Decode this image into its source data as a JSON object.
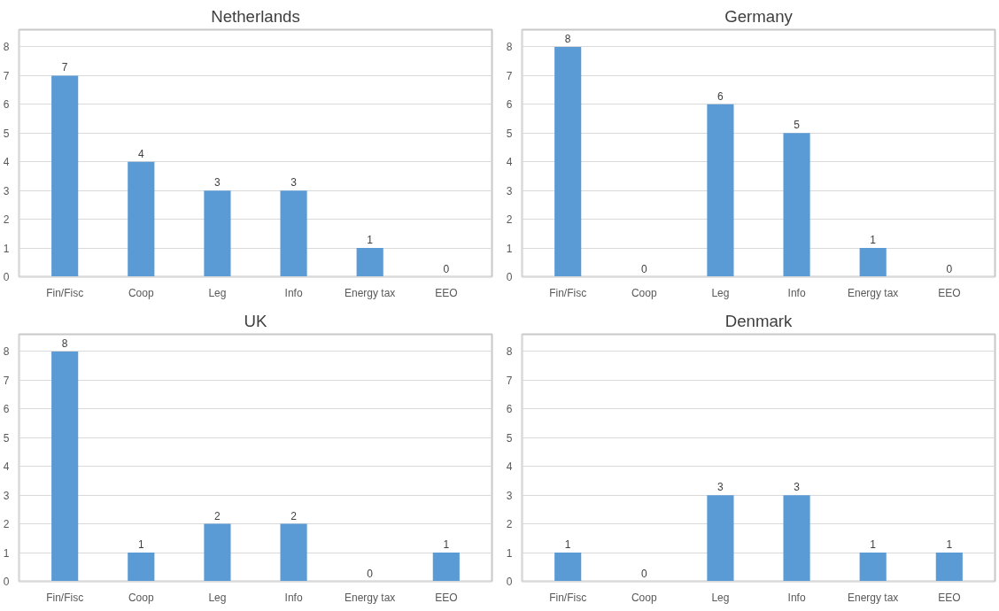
{
  "chart_data": [
    {
      "type": "bar",
      "title": "Netherlands",
      "categories": [
        "Fin/Fisc",
        "Coop",
        "Leg",
        "Info",
        "Energy tax",
        "EEO"
      ],
      "values": [
        7,
        4,
        3,
        3,
        1,
        0
      ],
      "color": "#5b9bd5",
      "ylim": [
        0,
        8.6
      ],
      "yticks": [
        0,
        1,
        2,
        3,
        4,
        5,
        6,
        7,
        8
      ],
      "grid": "y",
      "data_labels": true
    },
    {
      "type": "bar",
      "title": "Germany",
      "categories": [
        "Fin/Fisc",
        "Coop",
        "Leg",
        "Info",
        "Energy tax",
        "EEO"
      ],
      "values": [
        8,
        0,
        6,
        5,
        1,
        0
      ],
      "color": "#5b9bd5",
      "ylim": [
        0,
        8.6
      ],
      "yticks": [
        0,
        1,
        2,
        3,
        4,
        5,
        6,
        7,
        8
      ],
      "grid": "y",
      "data_labels": true
    },
    {
      "type": "bar",
      "title": "UK",
      "categories": [
        "Fin/Fisc",
        "Coop",
        "Leg",
        "Info",
        "Energy tax",
        "EEO"
      ],
      "values": [
        8,
        1,
        2,
        2,
        0,
        1
      ],
      "color": "#5b9bd5",
      "ylim": [
        0,
        8.6
      ],
      "yticks": [
        0,
        1,
        2,
        3,
        4,
        5,
        6,
        7,
        8
      ],
      "grid": "y",
      "data_labels": true
    },
    {
      "type": "bar",
      "title": "Denmark",
      "categories": [
        "Fin/Fisc",
        "Coop",
        "Leg",
        "Info",
        "Energy tax",
        "EEO"
      ],
      "values": [
        1,
        0,
        3,
        3,
        1,
        1
      ],
      "color": "#5b9bd5",
      "ylim": [
        0,
        8.6
      ],
      "yticks": [
        0,
        1,
        2,
        3,
        4,
        5,
        6,
        7,
        8
      ],
      "grid": "y",
      "data_labels": true
    }
  ]
}
